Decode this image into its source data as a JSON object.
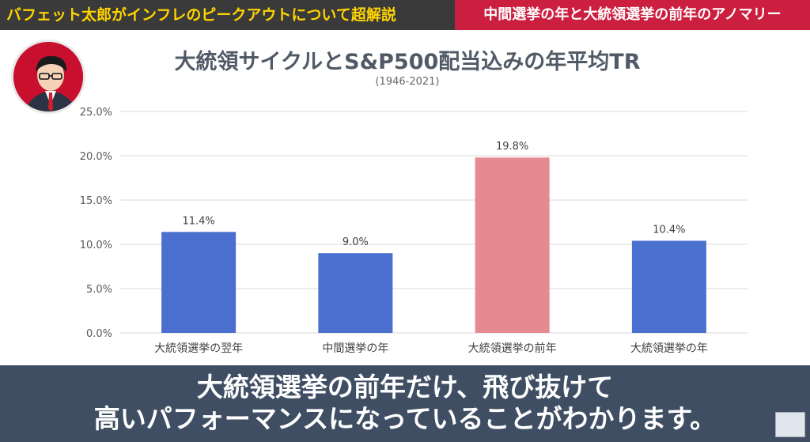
{
  "header": {
    "left_text": "バフェット太郎がインフレのピークアウトについて超解説",
    "right_text": "中間選挙の年と大統領選挙の前年のアノマリー"
  },
  "caption": {
    "line1": "大統領選挙の前年だけ、飛び抜けて",
    "line2": "高いパフォーマンスになっていることがわかります。"
  },
  "chart_data": {
    "type": "bar",
    "title": "大統領サイクルとS&P500配当込みの年平均TR",
    "subtitle": "(1946-2021)",
    "categories": [
      "大統領選挙の翌年",
      "中間選挙の年",
      "大統領選挙の前年",
      "大統領選挙の年"
    ],
    "values": [
      11.4,
      9.0,
      19.8,
      10.4
    ],
    "value_labels": [
      "11.4%",
      "9.0%",
      "19.8%",
      "10.4%"
    ],
    "ylim": [
      0,
      25
    ],
    "y_ticks": [
      "0.0%",
      "5.0%",
      "10.0%",
      "15.0%",
      "20.0%",
      "25.0%"
    ],
    "grid": true,
    "colors": [
      "#4a6fcf",
      "#4a6fcf",
      "#e58a91",
      "#4a6fcf"
    ]
  }
}
